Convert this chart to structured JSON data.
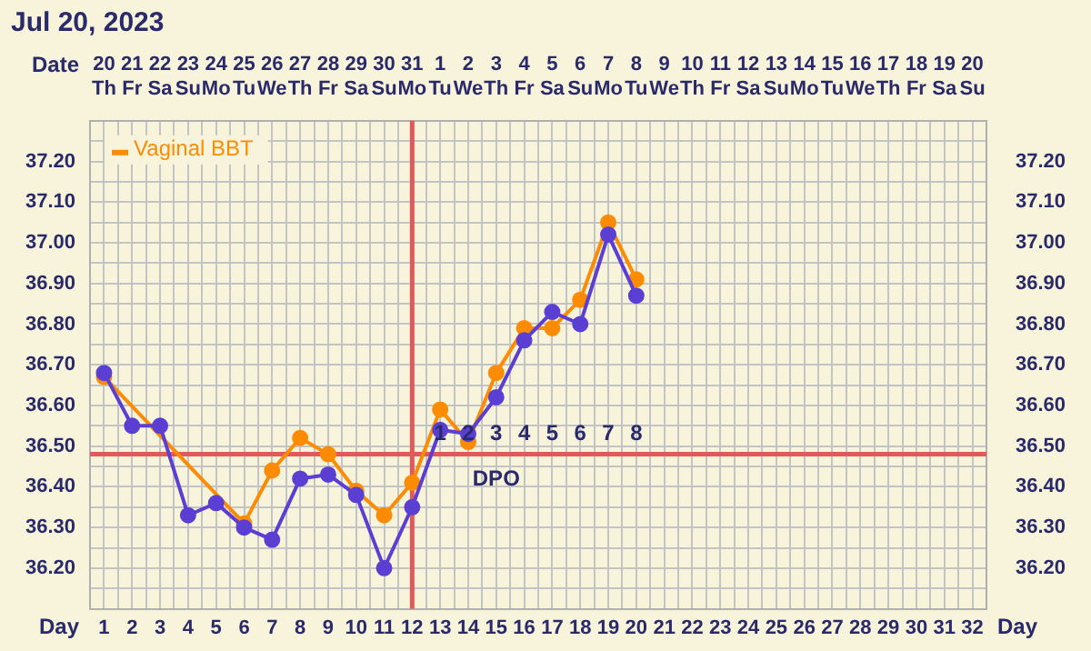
{
  "chart_data": {
    "type": "line",
    "title": "Jul 20, 2023",
    "xlabel": "Day",
    "x2label": "Date",
    "x": [
      1,
      2,
      3,
      4,
      5,
      6,
      7,
      8,
      9,
      10,
      11,
      12,
      13,
      14,
      15,
      16,
      17,
      18,
      19,
      20
    ],
    "series": [
      {
        "color": "#5b3fd3",
        "values": [
          36.68,
          36.55,
          36.55,
          36.33,
          36.36,
          36.3,
          36.27,
          36.42,
          36.43,
          36.38,
          36.2,
          36.35,
          36.54,
          36.53,
          36.62,
          36.76,
          36.83,
          36.8,
          37.02,
          36.87
        ]
      },
      {
        "name": "Vaginal BBT",
        "color": "#ff8c00",
        "x": [
          1,
          6,
          7,
          8,
          9,
          10,
          11,
          12,
          13,
          14,
          15,
          16,
          17,
          18,
          19,
          20
        ],
        "values": [
          36.67,
          36.31,
          36.44,
          36.52,
          36.48,
          36.39,
          36.33,
          36.41,
          36.59,
          36.51,
          36.68,
          36.79,
          36.79,
          36.86,
          37.05,
          36.91
        ]
      }
    ],
    "xlim": [
      0.5,
      32.5
    ],
    "xticks": [
      {
        "value": 0.5,
        "label": null
      },
      1,
      {
        "value": 1.5,
        "label": null
      },
      2,
      {
        "value": 2.5,
        "label": null
      },
      3,
      {
        "value": 3.5,
        "label": null
      },
      4,
      {
        "value": 4.5,
        "label": null
      },
      5,
      {
        "value": 5.5,
        "label": null
      },
      6,
      {
        "value": 6.5,
        "label": null
      },
      7,
      {
        "value": 7.5,
        "label": null
      },
      8,
      {
        "value": 8.5,
        "label": null
      },
      9,
      {
        "value": 9.5,
        "label": null
      },
      10,
      {
        "value": 10.5,
        "label": null
      },
      11,
      {
        "value": 11.5,
        "label": null
      },
      12,
      {
        "value": 12.5,
        "label": null
      },
      13,
      {
        "value": 13.5,
        "label": null
      },
      14,
      {
        "value": 14.5,
        "label": null
      },
      15,
      {
        "value": 15.5,
        "label": null
      },
      16,
      {
        "value": 16.5,
        "label": null
      },
      17,
      {
        "value": 17.5,
        "label": null
      },
      18,
      {
        "value": 18.5,
        "label": null
      },
      19,
      {
        "value": 19.5,
        "label": null
      },
      20,
      {
        "value": 20.5,
        "label": null
      },
      21,
      {
        "value": 21.5,
        "label": null
      },
      22,
      {
        "value": 22.5,
        "label": null
      },
      23,
      {
        "value": 23.5,
        "label": null
      },
      24,
      {
        "value": 24.5,
        "label": null
      },
      25,
      {
        "value": 25.5,
        "label": null
      },
      26,
      {
        "value": 26.5,
        "label": null
      },
      27,
      {
        "value": 27.5,
        "label": null
      },
      28,
      {
        "value": 28.5,
        "label": null
      },
      29,
      {
        "value": 29.5,
        "label": null
      },
      30,
      {
        "value": 30.5,
        "label": null
      },
      31,
      {
        "value": 31.5,
        "label": null
      },
      32,
      {
        "value": 32.5,
        "label": null
      }
    ],
    "x2lim": [
      "2023-07-19T12:00",
      "2023-08-20T12:00"
    ],
    "x2ticks": [
      {
        "value": "2023-07-20",
        "label": "20\nTh"
      },
      {
        "value": "2023-07-21",
        "label": "21\nFr"
      },
      {
        "value": "2023-07-22",
        "label": "22\nSa"
      },
      {
        "value": "2023-07-23",
        "label": "23\nSu"
      },
      {
        "value": "2023-07-24",
        "label": "24\nMo"
      },
      {
        "value": "2023-07-25",
        "label": "25\nTu"
      },
      {
        "value": "2023-07-26",
        "label": "26\nWe"
      },
      {
        "value": "2023-07-27",
        "label": "27\nTh"
      },
      {
        "value": "2023-07-28",
        "label": "28\nFr"
      },
      {
        "value": "2023-07-29",
        "label": "29\nSa"
      },
      {
        "value": "2023-07-30",
        "label": "30\nSu"
      },
      {
        "value": "2023-07-31",
        "label": "31\nMo"
      },
      {
        "value": "2023-08-01",
        "label": "1\nTu"
      },
      {
        "value": "2023-08-02",
        "label": "2\nWe"
      },
      {
        "value": "2023-08-03",
        "label": "3\nTh"
      },
      {
        "value": "2023-08-04",
        "label": "4\nFr"
      },
      {
        "value": "2023-08-05",
        "label": "5\nSa"
      },
      {
        "value": "2023-08-06",
        "label": "6\nSu"
      },
      {
        "value": "2023-08-07",
        "label": "7\nMo"
      },
      {
        "value": "2023-08-08",
        "label": "8\nTu"
      },
      {
        "value": "2023-08-09",
        "label": "9\nWe"
      },
      {
        "value": "2023-08-10",
        "label": "10\nTh"
      },
      {
        "value": "2023-08-11",
        "label": "11\nFr"
      },
      {
        "value": "2023-08-12",
        "label": "12\nSa"
      },
      {
        "value": "2023-08-13",
        "label": "13\nSu"
      },
      {
        "value": "2023-08-14",
        "label": "14\nMo"
      },
      {
        "value": "2023-08-15",
        "label": "15\nTu"
      },
      {
        "value": "2023-08-16",
        "label": "16\nWe"
      },
      {
        "value": "2023-08-17",
        "label": "17\nTh"
      },
      {
        "value": "2023-08-18",
        "label": "18\nFr"
      },
      {
        "value": "2023-08-19",
        "label": "19\nSa"
      },
      {
        "value": "2023-08-20",
        "label": "20\nSu"
      }
    ],
    "ylim": [
      36.1,
      37.3
    ],
    "yticks": [
      {
        "value": 36.1,
        "label": null
      },
      {
        "value": 36.15,
        "label": null
      },
      {
        "value": 36.2,
        "label": "36.20"
      },
      {
        "value": 36.25,
        "label": null
      },
      {
        "value": 36.3,
        "label": "36.30"
      },
      {
        "value": 36.35,
        "label": null
      },
      {
        "value": 36.4,
        "label": "36.40"
      },
      {
        "value": 36.45,
        "label": null
      },
      {
        "value": 36.5,
        "label": "36.50"
      },
      {
        "value": 36.55,
        "label": null
      },
      {
        "value": 36.6,
        "label": "36.60"
      },
      {
        "value": 36.65,
        "label": null
      },
      {
        "value": 36.7,
        "label": "36.70"
      },
      {
        "value": 36.75,
        "label": null
      },
      {
        "value": 36.8,
        "label": "36.80"
      },
      {
        "value": 36.85,
        "label": null
      },
      {
        "value": 36.9,
        "label": "36.90"
      },
      {
        "value": 36.95,
        "label": null
      },
      {
        "value": 37.0,
        "label": "37.00"
      },
      {
        "value": 37.05,
        "label": null
      },
      {
        "value": 37.1,
        "label": "37.10"
      },
      {
        "value": 37.15,
        "label": null
      },
      {
        "value": 37.2,
        "label": "37.20"
      },
      {
        "value": 37.25,
        "label": null
      },
      {
        "value": 37.3,
        "label": null
      }
    ],
    "y2lim": [
      36.1,
      37.3
    ],
    "y2ticks": [
      {
        "value": 36.1,
        "label": null
      },
      {
        "value": 36.15,
        "label": null
      },
      {
        "value": 36.2,
        "label": "36.20"
      },
      {
        "value": 36.25,
        "label": null
      },
      {
        "value": 36.3,
        "label": "36.30"
      },
      {
        "value": 36.35,
        "label": null
      },
      {
        "value": 36.4,
        "label": "36.40"
      },
      {
        "value": 36.45,
        "label": null
      },
      {
        "value": 36.5,
        "label": "36.50"
      },
      {
        "value": 36.55,
        "label": null
      },
      {
        "value": 36.6,
        "label": "36.60"
      },
      {
        "value": 36.65,
        "label": null
      },
      {
        "value": 36.7,
        "label": "36.70"
      },
      {
        "value": 36.75,
        "label": null
      },
      {
        "value": 36.8,
        "label": "36.80"
      },
      {
        "value": 36.85,
        "label": null
      },
      {
        "value": 36.9,
        "label": "36.90"
      },
      {
        "value": 36.95,
        "label": null
      },
      {
        "value": 37.0,
        "label": "37.00"
      },
      {
        "value": 37.05,
        "label": null
      },
      {
        "value": 37.1,
        "label": "37.10"
      },
      {
        "value": 37.15,
        "label": null
      },
      {
        "value": 37.2,
        "label": "37.20"
      },
      {
        "value": 37.25,
        "label": null
      },
      {
        "value": 37.3,
        "label": null
      }
    ],
    "ref_lines": [
      {
        "axis": "y",
        "value": 36.48,
        "color": "#e05a5a"
      },
      {
        "axis": "x",
        "value": 12,
        "color": "#e05a5a"
      }
    ],
    "annotations": [
      "1",
      "2",
      "3",
      "4",
      "5",
      "6",
      "7",
      "8",
      "DPO"
    ],
    "grid": true,
    "legend": "top left",
    "marker": "circle",
    "line_style": "solid"
  }
}
